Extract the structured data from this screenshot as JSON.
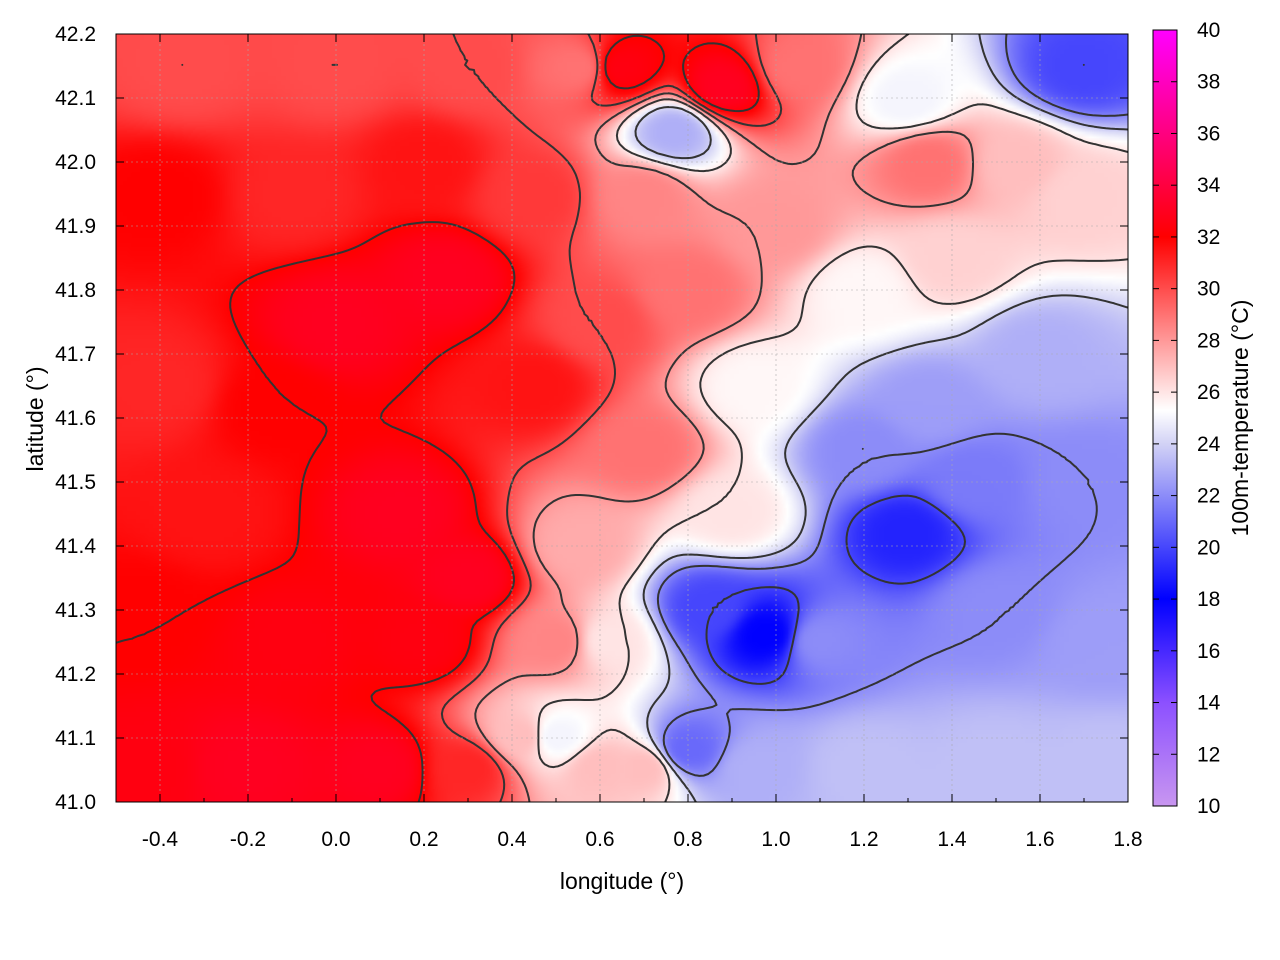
{
  "chart_data": {
    "type": "heatmap",
    "title": "",
    "xlabel": "longitude (°)",
    "ylabel": "latitude (°)",
    "colorbar_label": "100m-temperature (°C)",
    "xlim": [
      -0.5,
      1.8
    ],
    "ylim": [
      41.0,
      42.2
    ],
    "clim": [
      10,
      40
    ],
    "x_ticks": [
      "-0.4",
      "-0.2",
      "0.0",
      "0.2",
      "0.4",
      "0.6",
      "0.8",
      "1.0",
      "1.2",
      "1.4",
      "1.6",
      "1.8"
    ],
    "x_tick_values": [
      -0.4,
      -0.2,
      0.0,
      0.2,
      0.4,
      0.6,
      0.8,
      1.0,
      1.2,
      1.4,
      1.6,
      1.8
    ],
    "y_ticks": [
      "41.0",
      "41.1",
      "41.2",
      "41.3",
      "41.4",
      "41.5",
      "41.6",
      "41.7",
      "41.8",
      "41.9",
      "42.0",
      "42.1",
      "42.2"
    ],
    "y_tick_values": [
      41.0,
      41.1,
      41.2,
      41.3,
      41.4,
      41.5,
      41.6,
      41.7,
      41.8,
      41.9,
      42.0,
      42.1,
      42.2
    ],
    "colorbar_ticks": [
      "10",
      "12",
      "14",
      "16",
      "18",
      "20",
      "22",
      "24",
      "26",
      "28",
      "30",
      "32",
      "34",
      "36",
      "38",
      "40"
    ],
    "colorbar_tick_values": [
      10,
      12,
      14,
      16,
      18,
      20,
      22,
      24,
      26,
      28,
      30,
      32,
      34,
      36,
      38,
      40
    ],
    "colormap": [
      {
        "t": 10,
        "color": "#c896f0"
      },
      {
        "t": 14,
        "color": "#8c50ff"
      },
      {
        "t": 18,
        "color": "#0000ff"
      },
      {
        "t": 24,
        "color": "#d2d2f5"
      },
      {
        "t": 25.3,
        "color": "#ffffff"
      },
      {
        "t": 32,
        "color": "#ff0000"
      },
      {
        "t": 40,
        "color": "#ff00ff"
      }
    ],
    "grid": true,
    "contours": true,
    "field_points": [
      {
        "lon": -0.45,
        "lat": 41.05,
        "t": 32.5
      },
      {
        "lon": -0.2,
        "lat": 41.05,
        "t": 33
      },
      {
        "lon": 0.1,
        "lat": 41.05,
        "t": 33
      },
      {
        "lon": 0.3,
        "lat": 41.05,
        "t": 31
      },
      {
        "lon": 0.42,
        "lat": 41.1,
        "t": 27
      },
      {
        "lon": 0.5,
        "lat": 41.1,
        "t": 25
      },
      {
        "lon": 0.6,
        "lat": 41.05,
        "t": 27
      },
      {
        "lon": 0.7,
        "lat": 41.05,
        "t": 27
      },
      {
        "lon": 0.8,
        "lat": 41.08,
        "t": 21
      },
      {
        "lon": 0.95,
        "lat": 41.05,
        "t": 23
      },
      {
        "lon": 1.2,
        "lat": 41.05,
        "t": 23.5
      },
      {
        "lon": 1.5,
        "lat": 41.05,
        "t": 23.5
      },
      {
        "lon": 1.75,
        "lat": 41.05,
        "t": 23.5
      },
      {
        "lon": 1.75,
        "lat": 41.25,
        "t": 22.5
      },
      {
        "lon": 1.5,
        "lat": 41.3,
        "t": 22
      },
      {
        "lon": 1.3,
        "lat": 41.42,
        "t": 19
      },
      {
        "lon": 1.1,
        "lat": 41.25,
        "t": 22
      },
      {
        "lon": 0.98,
        "lat": 41.26,
        "t": 18
      },
      {
        "lon": 0.85,
        "lat": 41.3,
        "t": 20
      },
      {
        "lon": 1.2,
        "lat": 41.55,
        "t": 22
      },
      {
        "lon": 1.45,
        "lat": 41.5,
        "t": 21.5
      },
      {
        "lon": 1.7,
        "lat": 41.5,
        "t": 22
      },
      {
        "lon": 1.6,
        "lat": 41.7,
        "t": 23
      },
      {
        "lon": 1.35,
        "lat": 41.62,
        "t": 22.5
      },
      {
        "lon": 1.4,
        "lat": 41.85,
        "t": 26.5
      },
      {
        "lon": 1.2,
        "lat": 41.8,
        "t": 25.5
      },
      {
        "lon": 1.7,
        "lat": 41.95,
        "t": 26.5
      },
      {
        "lon": 1.55,
        "lat": 42.0,
        "t": 27
      },
      {
        "lon": 1.7,
        "lat": 42.15,
        "t": 20
      },
      {
        "lon": 1.3,
        "lat": 42.1,
        "t": 25
      },
      {
        "lon": 1.0,
        "lat": 41.9,
        "t": 28
      },
      {
        "lon": 0.95,
        "lat": 41.65,
        "t": 25.5
      },
      {
        "lon": 0.9,
        "lat": 41.45,
        "t": 26
      },
      {
        "lon": 0.7,
        "lat": 41.55,
        "t": 29
      },
      {
        "lon": 0.55,
        "lat": 41.4,
        "t": 27.5
      },
      {
        "lon": 0.62,
        "lat": 41.25,
        "t": 26
      },
      {
        "lon": 0.5,
        "lat": 41.25,
        "t": 28.5
      },
      {
        "lon": 0.3,
        "lat": 41.35,
        "t": 33
      },
      {
        "lon": 0.15,
        "lat": 41.45,
        "t": 33
      },
      {
        "lon": 0.2,
        "lat": 41.25,
        "t": 32.5
      },
      {
        "lon": -0.1,
        "lat": 41.25,
        "t": 32.5
      },
      {
        "lon": -0.3,
        "lat": 41.45,
        "t": 31.5
      },
      {
        "lon": -0.45,
        "lat": 41.3,
        "t": 32
      },
      {
        "lon": -0.4,
        "lat": 41.65,
        "t": 31
      },
      {
        "lon": -0.15,
        "lat": 41.62,
        "t": 32
      },
      {
        "lon": 0.0,
        "lat": 41.75,
        "t": 33
      },
      {
        "lon": 0.25,
        "lat": 41.82,
        "t": 33
      },
      {
        "lon": 0.45,
        "lat": 41.65,
        "t": 31.5
      },
      {
        "lon": 0.6,
        "lat": 41.75,
        "t": 30
      },
      {
        "lon": 0.8,
        "lat": 41.8,
        "t": 29
      },
      {
        "lon": 0.45,
        "lat": 41.95,
        "t": 30.5
      },
      {
        "lon": 0.2,
        "lat": 42.0,
        "t": 31.5
      },
      {
        "lon": -0.1,
        "lat": 41.95,
        "t": 31
      },
      {
        "lon": -0.4,
        "lat": 41.95,
        "t": 32
      },
      {
        "lon": -0.35,
        "lat": 42.15,
        "t": 30
      },
      {
        "lon": 0.0,
        "lat": 42.15,
        "t": 30
      },
      {
        "lon": 0.3,
        "lat": 42.15,
        "t": 30
      },
      {
        "lon": 0.55,
        "lat": 42.15,
        "t": 29
      },
      {
        "lon": 0.65,
        "lat": 42.15,
        "t": 32.5
      },
      {
        "lon": 0.88,
        "lat": 42.12,
        "t": 33
      },
      {
        "lon": 0.77,
        "lat": 42.05,
        "t": 23
      },
      {
        "lon": 1.05,
        "lat": 42.15,
        "t": 29
      },
      {
        "lon": 1.35,
        "lat": 42.0,
        "t": 29
      },
      {
        "lon": 0.7,
        "lat": 41.95,
        "t": 28.5
      }
    ]
  }
}
